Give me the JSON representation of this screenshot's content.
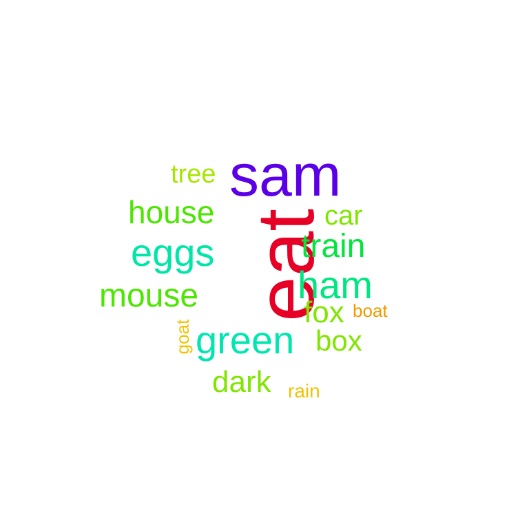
{
  "word_cloud": {
    "words": [
      {
        "text": "sam",
        "color": "#5b00e6"
      },
      {
        "text": "eat",
        "color": "#e60026"
      },
      {
        "text": "tree",
        "color": "#a6e600"
      },
      {
        "text": "house",
        "color": "#4ce600"
      },
      {
        "text": "car",
        "color": "#80e600"
      },
      {
        "text": "eggs",
        "color": "#00e6a8"
      },
      {
        "text": "train",
        "color": "#00e63d"
      },
      {
        "text": "ham",
        "color": "#00e680"
      },
      {
        "text": "mouse",
        "color": "#4ce600"
      },
      {
        "text": "fox",
        "color": "#80e600"
      },
      {
        "text": "boat",
        "color": "#f29900"
      },
      {
        "text": "green",
        "color": "#00e6b0"
      },
      {
        "text": "box",
        "color": "#80e600"
      },
      {
        "text": "goat",
        "color": "#f2c200"
      },
      {
        "text": "dark",
        "color": "#80e600"
      },
      {
        "text": "rain",
        "color": "#f2c200"
      }
    ]
  }
}
